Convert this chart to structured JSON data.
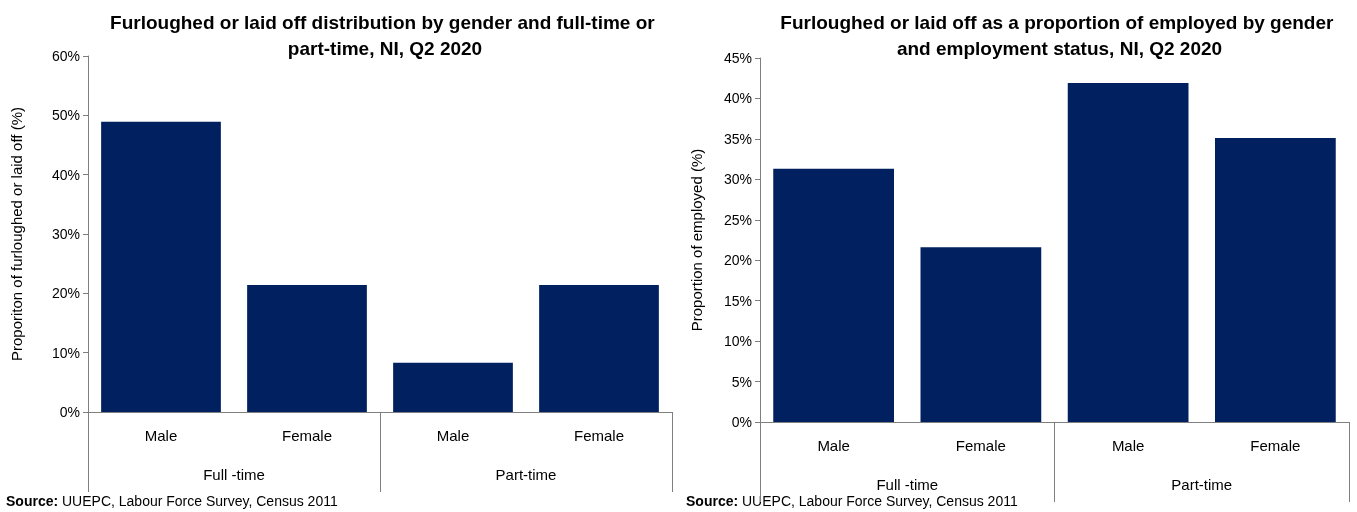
{
  "chart_data": [
    {
      "type": "bar",
      "title": "Furloughed or laid off distribution by gender and full-time or part-time, NI, Q2 2020",
      "ylabel": "Proporiton of furloughed or laid off (%)",
      "categories": [
        "Male",
        "Female",
        "Male",
        "Female"
      ],
      "values": [
        48.9,
        21.4,
        8.3,
        21.4
      ],
      "color": "#002060",
      "ylim": [
        0,
        60
      ],
      "yticks": [
        {
          "value": 0,
          "label": "0%"
        },
        {
          "value": 10,
          "label": "10%"
        },
        {
          "value": 20,
          "label": "20%"
        },
        {
          "value": 30,
          "label": "30%"
        },
        {
          "value": 40,
          "label": "40%"
        },
        {
          "value": 50,
          "label": "50%"
        },
        {
          "value": 60,
          "label": "60%"
        }
      ],
      "grid": false,
      "annotations": [
        "Full -time",
        "Part-time",
        "Source: UUEPC, Labour Force Survey, Census 2011"
      ]
    },
    {
      "type": "bar",
      "title": "Furloughed or laid off as a proportion of employed by gender and employment status, NI, Q2 2020",
      "ylabel": "Proportion of employed (%)",
      "categories": [
        "Male",
        "Female",
        "Male",
        "Female"
      ],
      "values": [
        31.3,
        21.6,
        41.9,
        35.1
      ],
      "color": "#002060",
      "ylim": [
        0,
        45
      ],
      "yticks": [
        {
          "value": 0,
          "label": "0%"
        },
        {
          "value": 5,
          "label": "5%"
        },
        {
          "value": 10,
          "label": "10%"
        },
        {
          "value": 15,
          "label": "15%"
        },
        {
          "value": 20,
          "label": "20%"
        },
        {
          "value": 25,
          "label": "25%"
        },
        {
          "value": 30,
          "label": "30%"
        },
        {
          "value": 35,
          "label": "35%"
        },
        {
          "value": 40,
          "label": "40%"
        },
        {
          "value": 45,
          "label": "45%"
        }
      ],
      "grid": false,
      "annotations": [
        "Full -time",
        "Part-time",
        "Source: UUEPC, Labour Force Survey, Census 2011"
      ]
    }
  ]
}
